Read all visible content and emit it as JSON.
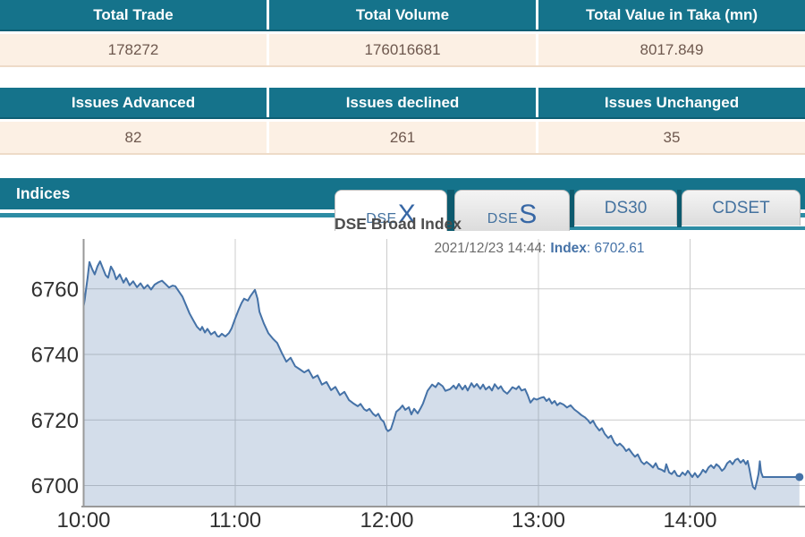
{
  "tables": {
    "trade": {
      "headers": [
        "Total Trade",
        "Total Volume",
        "Total Value in Taka (mn)"
      ],
      "values": [
        "178272",
        "176016681",
        "8017.849"
      ]
    },
    "issues": {
      "headers": [
        "Issues Advanced",
        "Issues declined",
        "Issues Unchanged"
      ],
      "values": [
        "82",
        "261",
        "35"
      ]
    }
  },
  "indices": {
    "bar_title": "Indices",
    "tabs": [
      {
        "label": "DSEX",
        "prefix": "DSE",
        "suffix": "X",
        "active": true
      },
      {
        "label": "DSES",
        "prefix": "DSE",
        "suffix": "S",
        "active": false
      },
      {
        "label": "DS30",
        "active": false
      },
      {
        "label": "CDSET",
        "active": false
      }
    ]
  },
  "colors": {
    "teal_header": "#15738b",
    "teal_dark_edge": "#0d5f74",
    "teal_accent": "#2d8ca4",
    "tab_gap": "#0d5a6e",
    "cream_row": "#fcf0e4",
    "cream_border": "#eedbc8",
    "value_text": "#6e584e",
    "tab_text": "#44729f",
    "grid": "#cccccc",
    "axis": "#999999",
    "tick_text": "#303030",
    "line": "#4572a7",
    "fill": "rgba(69,114,167,0.24)",
    "tooltip_gray": "#6b6b6b"
  },
  "chart_data": {
    "type": "area",
    "title": "DSE Broad Index",
    "series_name": "Index",
    "tooltip": {
      "datetime": "2021/12/23 14:44:",
      "series": "Index",
      "value": ": 6702.61"
    },
    "x_ticks": [
      "10:00",
      "11:00",
      "12:00",
      "13:00",
      "14:00"
    ],
    "y_ticks": [
      6700,
      6720,
      6740,
      6760
    ],
    "x_minutes_per_tick": 60,
    "x_range_minutes": [
      0,
      284
    ],
    "ylim": [
      6693.5,
      6775
    ],
    "grid": true,
    "legend": false,
    "last_point": {
      "time": "14:44",
      "value": 6702.61
    },
    "points": [
      [
        0,
        6754.8
      ],
      [
        0.4,
        6756.5
      ],
      [
        0.9,
        6759.5
      ],
      [
        1.6,
        6763.5
      ],
      [
        2.3,
        6768.2
      ],
      [
        3.4,
        6766
      ],
      [
        4.4,
        6764.4
      ],
      [
        5.5,
        6766.9
      ],
      [
        6.5,
        6768.4
      ],
      [
        7.6,
        6766.3
      ],
      [
        8.7,
        6764.2
      ],
      [
        9.7,
        6763.4
      ],
      [
        10.8,
        6766.8
      ],
      [
        11.9,
        6765.3
      ],
      [
        12.9,
        6762.9
      ],
      [
        14.3,
        6764.4
      ],
      [
        15.8,
        6761.9
      ],
      [
        16.8,
        6763.3
      ],
      [
        18.2,
        6761.1
      ],
      [
        19.6,
        6762.3
      ],
      [
        21.1,
        6760.5
      ],
      [
        22.5,
        6761.7
      ],
      [
        23.9,
        6760.1
      ],
      [
        25.3,
        6761.2
      ],
      [
        26.7,
        6759.8
      ],
      [
        28.1,
        6761.3
      ],
      [
        29.6,
        6762
      ],
      [
        31,
        6762.5
      ],
      [
        32.4,
        6761.5
      ],
      [
        33.8,
        6760.4
      ],
      [
        35.2,
        6761
      ],
      [
        36.3,
        6760.8
      ],
      [
        37.7,
        6759.2
      ],
      [
        39.1,
        6757.6
      ],
      [
        40.5,
        6755.1
      ],
      [
        41.9,
        6752.5
      ],
      [
        43.4,
        6750.4
      ],
      [
        44.8,
        6748.5
      ],
      [
        46.2,
        6747.4
      ],
      [
        46.9,
        6748.4
      ],
      [
        48,
        6746.7
      ],
      [
        49,
        6747.8
      ],
      [
        50.4,
        6746.1
      ],
      [
        51.9,
        6746.9
      ],
      [
        52.9,
        6745.6
      ],
      [
        53.6,
        6745.4
      ],
      [
        54.7,
        6746.3
      ],
      [
        56.1,
        6745.5
      ],
      [
        57.5,
        6746.5
      ],
      [
        58.6,
        6748
      ],
      [
        60,
        6751
      ],
      [
        61.4,
        6753.8
      ],
      [
        62.5,
        6755.7
      ],
      [
        63.5,
        6757
      ],
      [
        65,
        6756.4
      ],
      [
        66,
        6757.8
      ],
      [
        67.8,
        6759.7
      ],
      [
        68.8,
        6757
      ],
      [
        69.6,
        6753
      ],
      [
        71.3,
        6749.5
      ],
      [
        73.1,
        6746.5
      ],
      [
        74.9,
        6744.8
      ],
      [
        76.6,
        6743.5
      ],
      [
        78.4,
        6740.5
      ],
      [
        80.2,
        6737.8
      ],
      [
        81.9,
        6739
      ],
      [
        83.7,
        6736.4
      ],
      [
        85.5,
        6735.5
      ],
      [
        87.3,
        6734.5
      ],
      [
        89,
        6735.3
      ],
      [
        90.8,
        6732.8
      ],
      [
        92.6,
        6733.6
      ],
      [
        94.3,
        6730.8
      ],
      [
        96.1,
        6731.6
      ],
      [
        97.9,
        6729.1
      ],
      [
        99.6,
        6730.1
      ],
      [
        101.4,
        6727.6
      ],
      [
        103.2,
        6728.6
      ],
      [
        105,
        6726.1
      ],
      [
        106.7,
        6725.1
      ],
      [
        108.5,
        6724.2
      ],
      [
        109.6,
        6724.9
      ],
      [
        111,
        6723.3
      ],
      [
        112,
        6722.8
      ],
      [
        113.1,
        6723.4
      ],
      [
        114.5,
        6721.9
      ],
      [
        115.6,
        6721.2
      ],
      [
        116.6,
        6721.9
      ],
      [
        117.7,
        6720.2
      ],
      [
        118.8,
        6719.4
      ],
      [
        119.8,
        6717.2
      ],
      [
        120.5,
        6716.6
      ],
      [
        121.6,
        6717.2
      ],
      [
        122.7,
        6719.8
      ],
      [
        123.7,
        6722.5
      ],
      [
        125.1,
        6723.4
      ],
      [
        126.2,
        6724.4
      ],
      [
        127.3,
        6723.1
      ],
      [
        128.7,
        6723.9
      ],
      [
        129.7,
        6721.7
      ],
      [
        130.8,
        6723.4
      ],
      [
        132.2,
        6722
      ],
      [
        133.3,
        6723.5
      ],
      [
        134.3,
        6725
      ],
      [
        136.1,
        6728.9
      ],
      [
        137.9,
        6730.8
      ],
      [
        139.3,
        6730
      ],
      [
        140.4,
        6731.3
      ],
      [
        142.1,
        6730.3
      ],
      [
        143.2,
        6728.9
      ],
      [
        145,
        6729.4
      ],
      [
        146.4,
        6730.5
      ],
      [
        147.4,
        6729.5
      ],
      [
        148.5,
        6731
      ],
      [
        149.9,
        6729.3
      ],
      [
        151,
        6730.5
      ],
      [
        152,
        6729
      ],
      [
        153.5,
        6731.2
      ],
      [
        154.5,
        6730
      ],
      [
        155.6,
        6731
      ],
      [
        157,
        6729.5
      ],
      [
        158.1,
        6730.8
      ],
      [
        159.1,
        6729.3
      ],
      [
        160.5,
        6730.2
      ],
      [
        161.6,
        6729
      ],
      [
        162.7,
        6730.9
      ],
      [
        164.1,
        6729.5
      ],
      [
        165.1,
        6730.3
      ],
      [
        166.2,
        6728.9
      ],
      [
        167.6,
        6728
      ],
      [
        168.7,
        6729
      ],
      [
        169.7,
        6730
      ],
      [
        171.2,
        6729.4
      ],
      [
        172.2,
        6730.3
      ],
      [
        173.3,
        6729
      ],
      [
        174.7,
        6729.4
      ],
      [
        175.8,
        6727.5
      ],
      [
        176.8,
        6725.3
      ],
      [
        178.2,
        6726.6
      ],
      [
        179.3,
        6726.2
      ],
      [
        181.1,
        6726.8
      ],
      [
        182.1,
        6727
      ],
      [
        183.2,
        6725.8
      ],
      [
        184.2,
        6726.5
      ],
      [
        185.3,
        6725
      ],
      [
        186.4,
        6725.8
      ],
      [
        187.4,
        6724.5
      ],
      [
        188.5,
        6725.2
      ],
      [
        189.9,
        6724.7
      ],
      [
        191.3,
        6723.8
      ],
      [
        192.7,
        6724.5
      ],
      [
        194.2,
        6723.2
      ],
      [
        195.6,
        6722.4
      ],
      [
        197,
        6721.5
      ],
      [
        198.4,
        6720.8
      ],
      [
        199.5,
        6720
      ],
      [
        200.5,
        6719
      ],
      [
        201.6,
        6719.8
      ],
      [
        202.7,
        6718.2
      ],
      [
        204.1,
        6716.8
      ],
      [
        205.1,
        6717.5
      ],
      [
        206.2,
        6715.8
      ],
      [
        207.6,
        6714.5
      ],
      [
        208.7,
        6715.2
      ],
      [
        210.1,
        6713
      ],
      [
        211.2,
        6712.2
      ],
      [
        212.2,
        6712.8
      ],
      [
        213.6,
        6711.8
      ],
      [
        214.7,
        6710.5
      ],
      [
        215.8,
        6711.2
      ],
      [
        217.2,
        6709.7
      ],
      [
        218.2,
        6708.8
      ],
      [
        219.3,
        6709.5
      ],
      [
        220.7,
        6707.3
      ],
      [
        221.8,
        6706.5
      ],
      [
        222.8,
        6707.2
      ],
      [
        224.2,
        6706.3
      ],
      [
        225.3,
        6705.5
      ],
      [
        226.4,
        6706.8
      ],
      [
        227.4,
        6705.2
      ],
      [
        228.8,
        6704.8
      ],
      [
        229.9,
        6704.2
      ],
      [
        230.6,
        6706.5
      ],
      [
        231.7,
        6704
      ],
      [
        232.7,
        6703.5
      ],
      [
        233.8,
        6704.5
      ],
      [
        234.9,
        6703
      ],
      [
        235.9,
        6702.8
      ],
      [
        237,
        6704
      ],
      [
        238.1,
        6703.2
      ],
      [
        239.1,
        6704.5
      ],
      [
        239.8,
        6703.8
      ],
      [
        240.9,
        6702.6
      ],
      [
        241.9,
        6703.8
      ],
      [
        243,
        6702.5
      ],
      [
        244.1,
        6703.5
      ],
      [
        245.1,
        6704.8
      ],
      [
        246.2,
        6704
      ],
      [
        247.3,
        6705.5
      ],
      [
        248.3,
        6706.2
      ],
      [
        249.4,
        6705.3
      ],
      [
        250.4,
        6706.5
      ],
      [
        251.5,
        6705.8
      ],
      [
        252.6,
        6704.5
      ],
      [
        253.6,
        6705.2
      ],
      [
        254.7,
        6706.8
      ],
      [
        255.8,
        6707.5
      ],
      [
        256.8,
        6706.5
      ],
      [
        257.9,
        6707.8
      ],
      [
        258.9,
        6708.2
      ],
      [
        260,
        6707
      ],
      [
        261.1,
        6707.8
      ],
      [
        262.1,
        6706.5
      ],
      [
        262.8,
        6707.5
      ],
      [
        263.5,
        6705
      ],
      [
        264.2,
        6702
      ],
      [
        264.9,
        6699.6
      ],
      [
        265.7,
        6698.9
      ],
      [
        266.4,
        6701.1
      ],
      [
        267.1,
        6703.6
      ],
      [
        267.6,
        6707.4
      ],
      [
        268.1,
        6704.1
      ],
      [
        268.8,
        6702.6
      ],
      [
        283.3,
        6702.6
      ]
    ]
  }
}
